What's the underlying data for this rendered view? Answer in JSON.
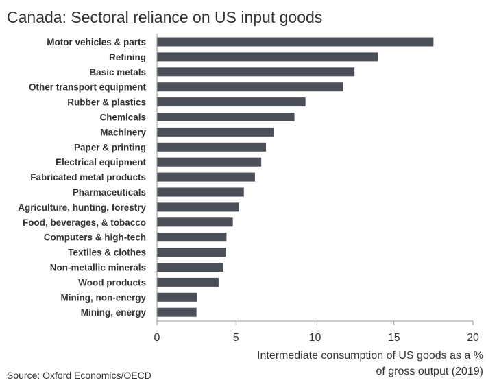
{
  "chart_data": {
    "type": "bar",
    "orientation": "horizontal",
    "title": "Canada: Sectoral reliance on US input goods",
    "categories": [
      "Motor vehicles & parts",
      "Refining",
      "Basic metals",
      "Other transport equipment",
      "Rubber & plastics",
      "Chemicals",
      "Machinery",
      "Paper & printing",
      "Electrical equipment",
      "Fabricated metal products",
      "Pharmaceuticals",
      "Agriculture, hunting, forestry",
      "Food, beverages, & tobacco",
      "Computers & high-tech",
      "Textiles & clothes",
      "Non-metallic minerals",
      "Wood products",
      "Mining, non-energy",
      "Mining, energy"
    ],
    "values": [
      17.5,
      14.0,
      12.5,
      11.8,
      9.4,
      8.7,
      7.4,
      6.9,
      6.6,
      6.2,
      5.5,
      5.2,
      4.8,
      4.4,
      4.35,
      4.2,
      3.9,
      2.55,
      2.5
    ],
    "xlim": [
      0,
      20
    ],
    "xticks": [
      0,
      5,
      10,
      15,
      20
    ],
    "xlabel_line1": "Intermediate consumption of US goods as a %",
    "xlabel_line2": "of gross output (2019)",
    "bar_color": "#4a4f58",
    "axis_color": "#9a9a9a",
    "grid": false,
    "legend": "none"
  },
  "source": "Source: Oxford Economics/OECD"
}
